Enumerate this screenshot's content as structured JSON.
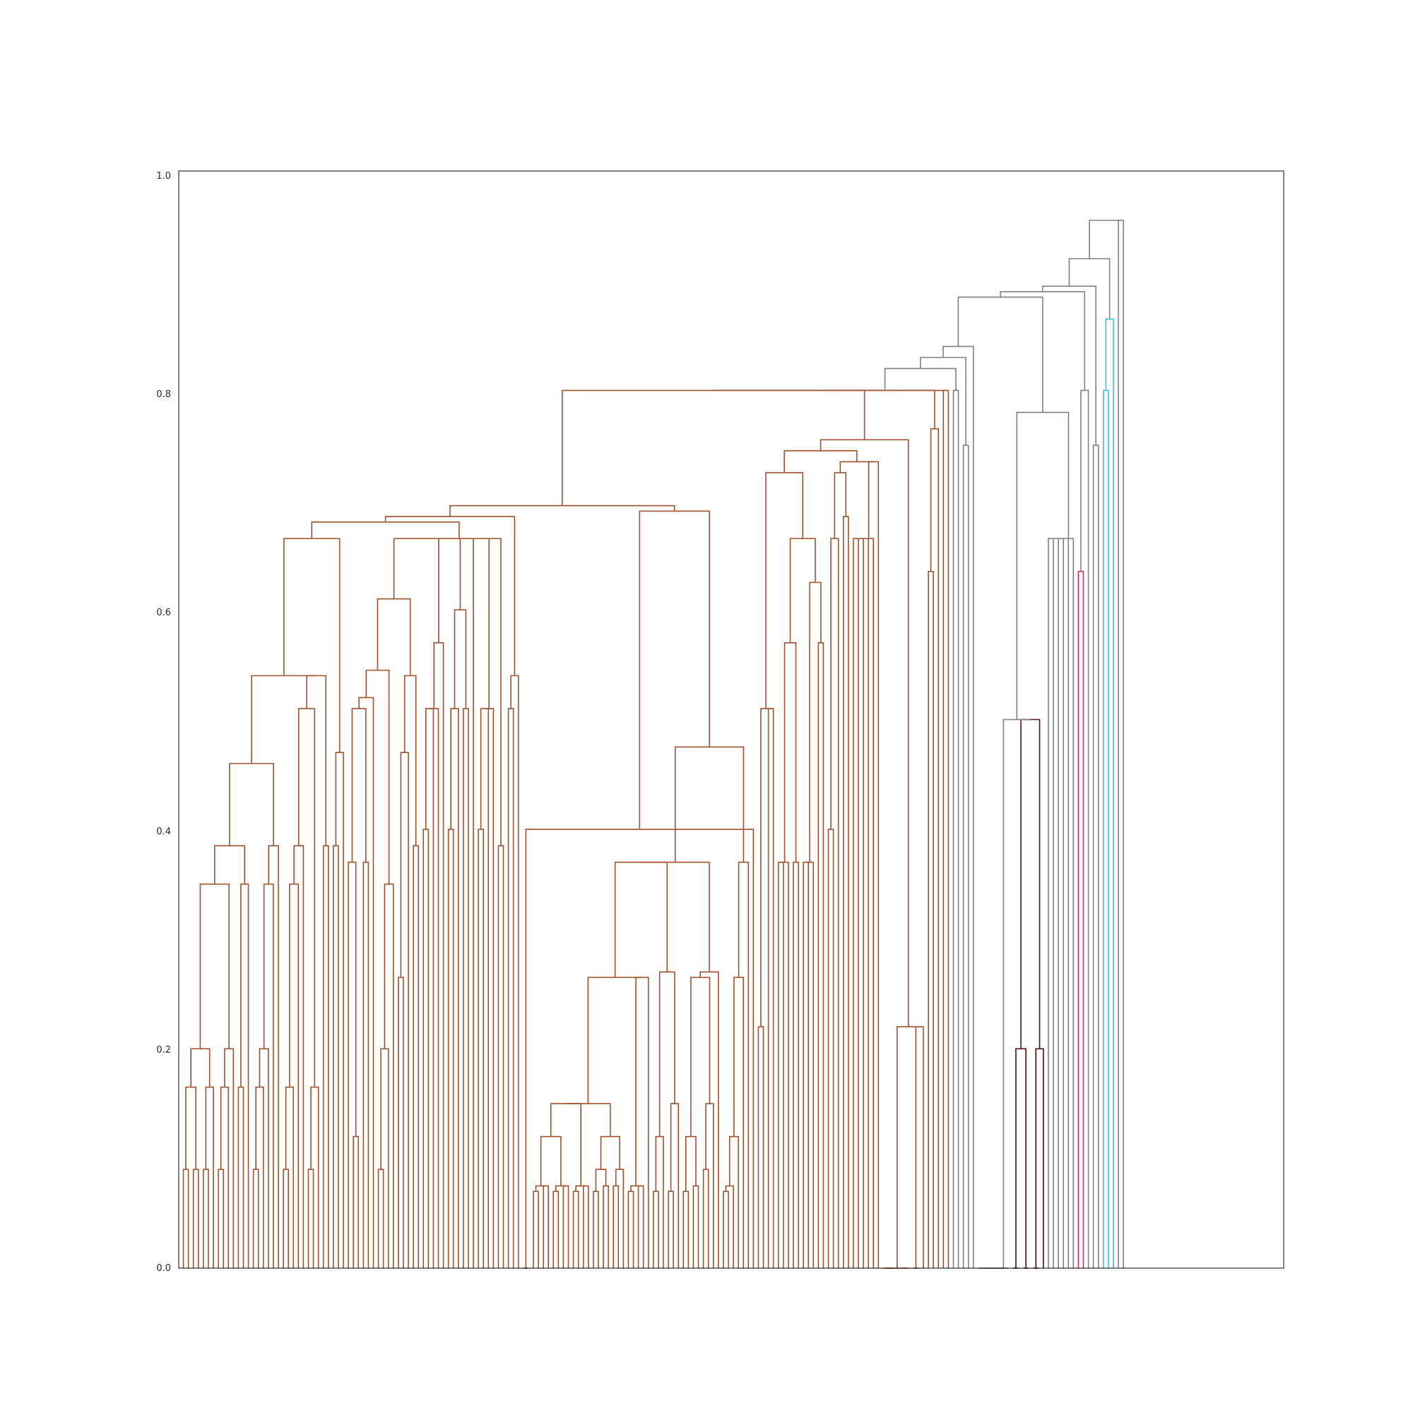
{
  "chart_data": {
    "type": "dendrogram",
    "title": "",
    "xlabel": "",
    "ylabel": "",
    "ylim": [
      0,
      1.0
    ],
    "y_ticks": [
      "0.0",
      "0.2",
      "0.4",
      "0.6",
      "0.8",
      "1.0"
    ],
    "y_tick_values": [
      0.0,
      0.2,
      0.4,
      0.6,
      0.8,
      1.0
    ],
    "leaf_count": 220,
    "grid": false,
    "legend": "none",
    "colors": {
      "cluster_brown": "#a0522d",
      "cluster_gray": "#808080",
      "cluster_darkred": "#5c0a0a",
      "cluster_pink": "#e0245e",
      "cluster_cyan": "#34c6d6",
      "frame": "#000000"
    },
    "merge_heights": {
      "root": 0.955,
      "top_level": [
        0.92,
        0.895,
        0.89,
        0.885
      ],
      "main_cluster": 0.84,
      "brown_cluster_top": 0.8,
      "brown_subclusters": [
        0.755,
        0.745,
        0.735,
        0.725,
        0.695,
        0.69,
        0.685,
        0.68
      ],
      "gray_subclusters": [
        0.78,
        0.665
      ],
      "darkred_cluster": 0.5,
      "darkred_subclusters": [
        0.2,
        0.2
      ],
      "pink_cluster": 0.635,
      "cyan_cluster": [
        0.865,
        0.8
      ]
    }
  }
}
